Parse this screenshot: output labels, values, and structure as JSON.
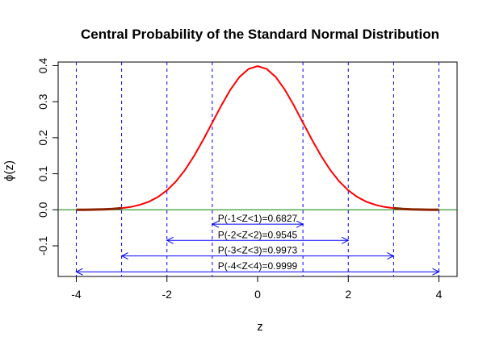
{
  "chart_data": {
    "type": "line",
    "title": "Central Probability of the Standard Normal Distribution",
    "xlabel": "z",
    "ylabel": "ϕ(z)",
    "xlim": [
      -4.4,
      4.4
    ],
    "ylim": [
      -0.185,
      0.41
    ],
    "xticks": [
      -4,
      -2,
      0,
      2,
      4
    ],
    "xtick_labels": [
      "-4",
      "-2",
      "0",
      "2",
      "4"
    ],
    "yticks": [
      -0.1,
      0.0,
      0.1,
      0.2,
      0.3,
      0.4
    ],
    "ytick_labels": [
      "-0.1",
      "0.0",
      "0.1",
      "0.2",
      "0.3",
      "0.4"
    ],
    "grid": false,
    "series": [
      {
        "color": "#ff0000",
        "tail_color": "#8b2500",
        "x": [
          -4.0,
          -3.8,
          -3.6,
          -3.4,
          -3.2,
          -3.0,
          -2.8,
          -2.6,
          -2.4,
          -2.2,
          -2.0,
          -1.8,
          -1.6,
          -1.4,
          -1.2,
          -1.0,
          -0.8,
          -0.6,
          -0.4,
          -0.2,
          0.0,
          0.2,
          0.4,
          0.6,
          0.8,
          1.0,
          1.2,
          1.4,
          1.6,
          1.8,
          2.0,
          2.2,
          2.4,
          2.6,
          2.8,
          3.0,
          3.2,
          3.4,
          3.6,
          3.8,
          4.0
        ],
        "y": [
          0.0001,
          0.0003,
          0.0006,
          0.0012,
          0.0024,
          0.0044,
          0.0079,
          0.0136,
          0.0224,
          0.0355,
          0.054,
          0.079,
          0.1109,
          0.1497,
          0.1942,
          0.242,
          0.2897,
          0.3332,
          0.3683,
          0.391,
          0.3989,
          0.391,
          0.3683,
          0.3332,
          0.2897,
          0.242,
          0.1942,
          0.1497,
          0.1109,
          0.079,
          0.054,
          0.0355,
          0.0224,
          0.0136,
          0.0079,
          0.0044,
          0.0024,
          0.0012,
          0.0006,
          0.0003,
          0.0001
        ]
      }
    ],
    "baseline": {
      "y": 0.0,
      "color": "#008000"
    },
    "vlines": {
      "x": [
        -4,
        -3,
        -2,
        -1,
        1,
        2,
        3,
        4
      ],
      "color": "#0000ff",
      "style": "dashed"
    },
    "intervals": [
      {
        "lo": -1,
        "hi": 1,
        "y": -0.04,
        "label": "P(-1<Z<1)=0.6827"
      },
      {
        "lo": -2,
        "hi": 2,
        "y": -0.085,
        "label": "P(-2<Z<2)=0.9545"
      },
      {
        "lo": -3,
        "hi": 3,
        "y": -0.128,
        "label": "P(-3<Z<3)=0.9973"
      },
      {
        "lo": -4,
        "hi": 4,
        "y": -0.172,
        "label": "P(-4<Z<4)=0.9999"
      }
    ]
  }
}
